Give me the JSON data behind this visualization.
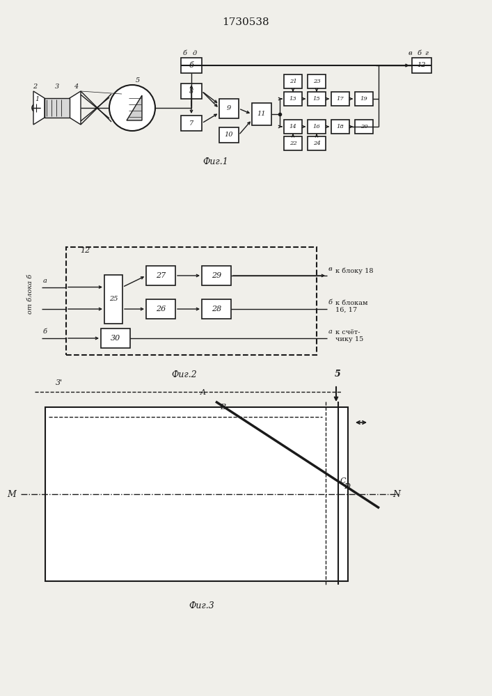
{
  "title": "1730538",
  "title_fontsize": 11,
  "fig1_caption": "Фиг.1",
  "fig2_caption": "Фиг.2",
  "fig3_caption": "Фиг.3",
  "bg_color": "#f0efea",
  "line_color": "#1a1a1a"
}
